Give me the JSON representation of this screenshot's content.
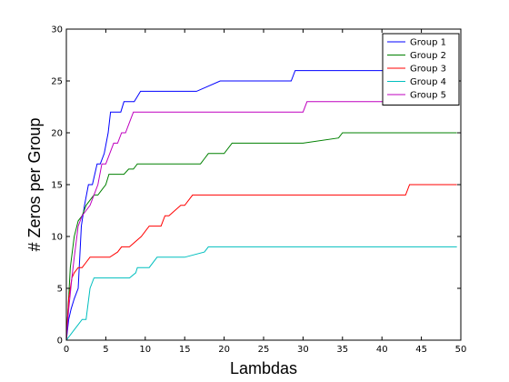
{
  "chart_data": {
    "type": "line",
    "title": "",
    "xlabel": "Lambdas",
    "ylabel": "# Zeros per Group",
    "xlim": [
      0,
      50
    ],
    "ylim": [
      0,
      30
    ],
    "xticks": [
      0,
      5,
      10,
      15,
      20,
      25,
      30,
      35,
      40,
      45,
      50
    ],
    "yticks": [
      0,
      5,
      10,
      15,
      20,
      25,
      30
    ],
    "grid": false,
    "legend_position": "top-right",
    "series": [
      {
        "name": "Group 1",
        "color": "#0000ff",
        "x": [
          0,
          0.3,
          0.6,
          1.0,
          1.5,
          1.9,
          2.3,
          2.8,
          3.3,
          3.6,
          3.9,
          4.3,
          4.8,
          5.3,
          5.6,
          6.1,
          6.5,
          6.9,
          7.3,
          8.0,
          8.6,
          9.0,
          9.4,
          9.8,
          10.2,
          16.5,
          19.5,
          20.0,
          21.0,
          22.0,
          23.0,
          24.0,
          25.0,
          26.0,
          27.0,
          28.5,
          29.0,
          35.0,
          36.0,
          49.5
        ],
        "y": [
          0,
          2,
          3,
          4,
          5,
          11,
          13,
          15,
          15,
          16,
          17,
          17,
          18,
          20,
          22,
          22,
          22,
          22,
          23,
          23,
          23,
          23.5,
          24,
          24,
          24,
          24,
          25,
          25,
          25,
          25,
          25,
          25,
          25,
          25,
          25,
          25,
          26,
          26,
          26,
          26
        ]
      },
      {
        "name": "Group 2",
        "color": "#008000",
        "x": [
          0,
          0.5,
          1.0,
          1.5,
          2.0,
          2.5,
          3.0,
          3.5,
          4.0,
          4.5,
          5.0,
          5.4,
          5.9,
          6.5,
          7.3,
          7.9,
          8.5,
          9.0,
          12.0,
          14.5,
          17.0,
          17.5,
          18.0,
          20.0,
          21.0,
          22.0,
          25.0,
          30.0,
          34.5,
          35.0,
          49.5
        ],
        "y": [
          0,
          7,
          10,
          11.5,
          12,
          13,
          13.5,
          14,
          14,
          14.5,
          15,
          16,
          16,
          16,
          16,
          16.5,
          16.5,
          17,
          17,
          17,
          17,
          17.5,
          18,
          18,
          19,
          19,
          19,
          19,
          19.5,
          20,
          20
        ]
      },
      {
        "name": "Group 3",
        "color": "#ff0000",
        "x": [
          0,
          0.3,
          0.7,
          1.0,
          1.5,
          2.0,
          2.5,
          3.0,
          3.5,
          4.5,
          5.5,
          6.5,
          7.0,
          8.0,
          9.5,
          10.5,
          11.0,
          12.0,
          12.5,
          13.0,
          14.5,
          15.0,
          16.0,
          17.5,
          43.0,
          43.5,
          44.0,
          49.5
        ],
        "y": [
          0,
          4,
          6,
          6.5,
          7,
          7,
          7.5,
          8,
          8,
          8,
          8,
          8.5,
          9,
          9,
          10,
          11,
          11,
          11,
          12,
          12,
          13,
          13,
          14,
          14,
          14,
          15,
          15,
          15
        ]
      },
      {
        "name": "Group 4",
        "color": "#00bfbf",
        "x": [
          0,
          0.5,
          1.0,
          1.5,
          2.0,
          2.5,
          3.0,
          3.5,
          4.5,
          6.0,
          8.0,
          8.8,
          9.0,
          9.5,
          10.5,
          11.5,
          12.0,
          15.0,
          17.5,
          18.0,
          18.5,
          20.0,
          49.5
        ],
        "y": [
          0,
          0.5,
          1,
          1.5,
          2,
          2,
          5,
          6,
          6,
          6,
          6,
          6.5,
          7,
          7,
          7,
          8,
          8,
          8,
          8.5,
          9,
          9,
          9,
          9
        ]
      },
      {
        "name": "Group 5",
        "color": "#bf00bf",
        "x": [
          0,
          0.3,
          0.7,
          1.0,
          1.5,
          2.0,
          2.5,
          3.0,
          3.5,
          4.0,
          4.5,
          5.0,
          5.5,
          6.0,
          6.5,
          7.0,
          7.5,
          8.0,
          8.5,
          9.0,
          12.0,
          20.0,
          25.0,
          30.0,
          30.5,
          35.0,
          49.5
        ],
        "y": [
          0,
          3,
          6,
          8,
          11,
          12,
          12.5,
          13,
          14,
          15,
          17,
          17,
          18,
          19,
          19,
          20,
          20,
          21,
          22,
          22,
          22,
          22,
          22,
          22,
          23,
          23,
          23
        ]
      }
    ]
  }
}
